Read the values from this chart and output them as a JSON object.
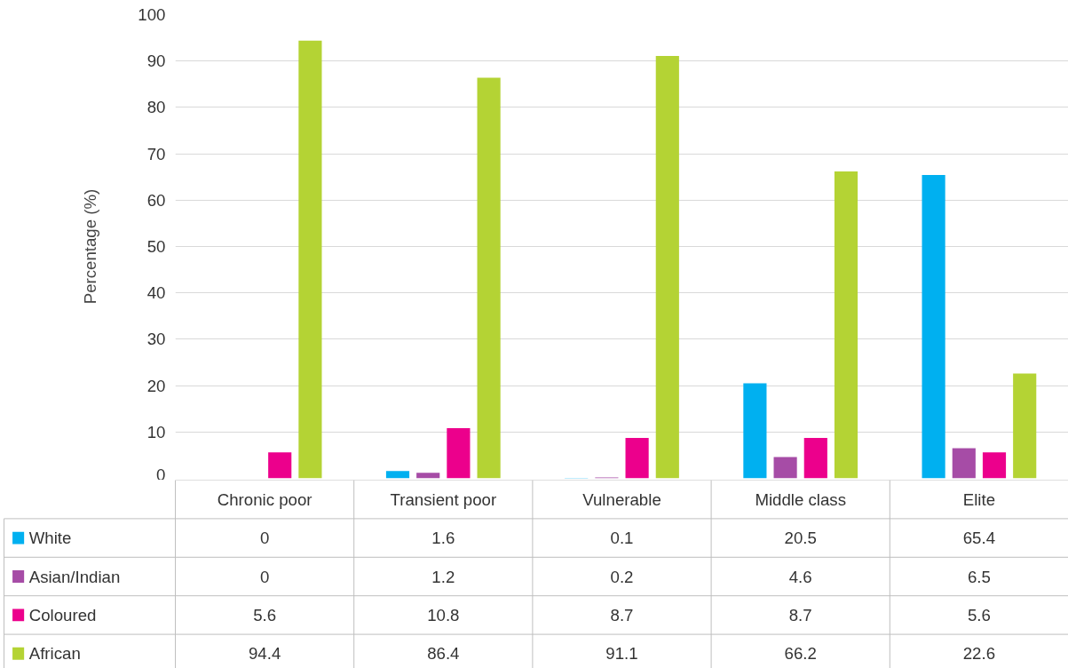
{
  "chart_data": {
    "type": "bar",
    "ylabel": "Percentage (%)",
    "categories": [
      "Chronic poor",
      "Transient poor",
      "Vulnerable",
      "Middle class",
      "Elite"
    ],
    "series": [
      {
        "name": "White",
        "color": "#00b0f0",
        "values": [
          0,
          1.6,
          0.1,
          20.5,
          65.4
        ]
      },
      {
        "name": "Asian/Indian",
        "color": "#a64ca6",
        "values": [
          0,
          1.2,
          0.2,
          4.6,
          6.5
        ]
      },
      {
        "name": "Coloured",
        "color": "#ec008c",
        "values": [
          5.6,
          10.8,
          8.7,
          8.7,
          5.6
        ]
      },
      {
        "name": "African",
        "color": "#b4d334",
        "values": [
          94.4,
          86.4,
          91.1,
          66.2,
          22.6
        ]
      }
    ],
    "ylim": [
      0,
      100
    ],
    "yticks": [
      0,
      10,
      20,
      30,
      40,
      50,
      60,
      70,
      80,
      90,
      100
    ],
    "grid": "y",
    "legend": "bottom",
    "data_labels": true
  }
}
